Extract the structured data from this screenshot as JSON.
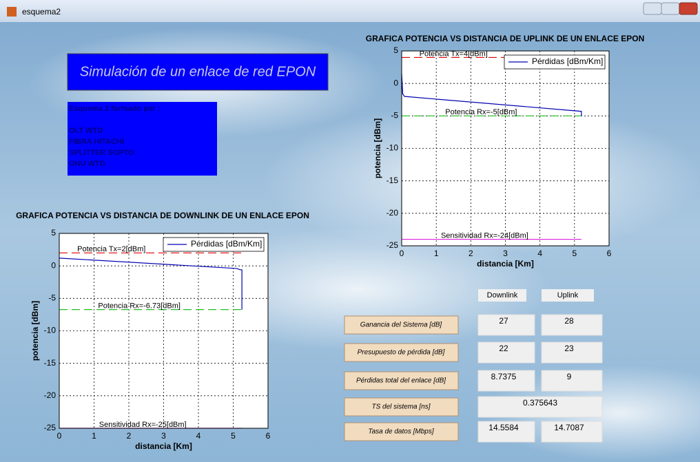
{
  "window": {
    "title": "esquema2"
  },
  "header": {
    "title": "Simulación de un enlace de red EPON"
  },
  "info": {
    "lines": [
      "Esquema 2 formado por :",
      "OLT WTD",
      "FIBRA HITACHI",
      "SPLITTER SOPTO",
      "ONU WTD"
    ]
  },
  "chart_data": [
    {
      "type": "line",
      "title": "GRAFICA POTENCIA VS DISTANCIA DE UPLINK DE UN ENLACE EPON",
      "x_label": "distancia [Km]",
      "y_label": "potencia [dBm]",
      "xlim": [
        0,
        6
      ],
      "ylim": [
        -25,
        5
      ],
      "xticks": [
        0,
        1,
        2,
        3,
        4,
        5,
        6
      ],
      "yticks": [
        -25,
        -20,
        -15,
        -10,
        -5,
        0,
        5
      ],
      "grid": true,
      "legend": "upper right",
      "series": [
        {
          "name": "Pérdidas [dBm/Km]",
          "color": "#0000b0",
          "x": [
            0,
            0.03,
            0.08,
            5.2,
            5.2
          ],
          "values": [
            1.5,
            -1.6,
            -2.0,
            -4.3,
            -5
          ]
        }
      ],
      "reference_lines": [
        {
          "value": 4,
          "label": "Potencia Tx=4[dBm]",
          "color": "#e00000",
          "style": "dashed",
          "x": [
            0,
            5.2
          ]
        },
        {
          "value": -5,
          "label": "Potencia Rx=-5[dBm]",
          "color": "#20c020",
          "style": "dashed",
          "x": [
            0,
            5.2
          ]
        },
        {
          "value": -24,
          "label": "Sensitividad Rx=-24[dBm]",
          "color": "#e020e0",
          "style": "solid",
          "x": [
            0,
            5.2
          ]
        }
      ]
    },
    {
      "type": "line",
      "title": "GRAFICA POTENCIA VS DISTANCIA DE DOWNLINK DE UN ENLACE EPON",
      "x_label": "distancia [Km]",
      "y_label": "potencia [dBm]",
      "xlim": [
        0,
        6
      ],
      "ylim": [
        -25,
        5
      ],
      "xticks": [
        0,
        1,
        2,
        3,
        4,
        5,
        6
      ],
      "yticks": [
        -25,
        -20,
        -15,
        -10,
        -5,
        0,
        5
      ],
      "grid": true,
      "legend": "upper right",
      "series": [
        {
          "name": "Pérdidas [dBm/Km]",
          "color": "#0000b0",
          "x": [
            0,
            5.1,
            5.2,
            5.25,
            5.25
          ],
          "values": [
            1.2,
            -0.4,
            -0.6,
            -0.6,
            -6.73
          ]
        }
      ],
      "reference_lines": [
        {
          "value": 2,
          "label": "Potencia Tx=2[dBm]",
          "color": "#e00000",
          "style": "dashed",
          "x": [
            0,
            5.25
          ]
        },
        {
          "value": -6.73,
          "label": "Potencia Rx=-6.73[dBm]",
          "color": "#20c020",
          "style": "dashed",
          "x": [
            0,
            5.25
          ]
        },
        {
          "value": -25,
          "label": "Sensitividad Rx=-25[dBm]",
          "color": "#e020e0",
          "style": "solid",
          "x": [
            0,
            5.25
          ]
        }
      ]
    }
  ],
  "table": {
    "columns": [
      "Downlink",
      "Uplink"
    ],
    "rows": [
      {
        "label": "Ganancia del Sistema [dB]",
        "values": [
          27,
          28
        ]
      },
      {
        "label": "Presupuesto de pérdida [dB]",
        "values": [
          22,
          23
        ]
      },
      {
        "label": "Pérdidas total del enlace [dB]",
        "values": [
          8.7375,
          9
        ]
      },
      {
        "label": "TS del sistema [ns]",
        "values": [
          0.375643
        ]
      },
      {
        "label": "Tasa de datos [Mbps]",
        "values": [
          14.5584,
          14.7087
        ]
      }
    ]
  }
}
